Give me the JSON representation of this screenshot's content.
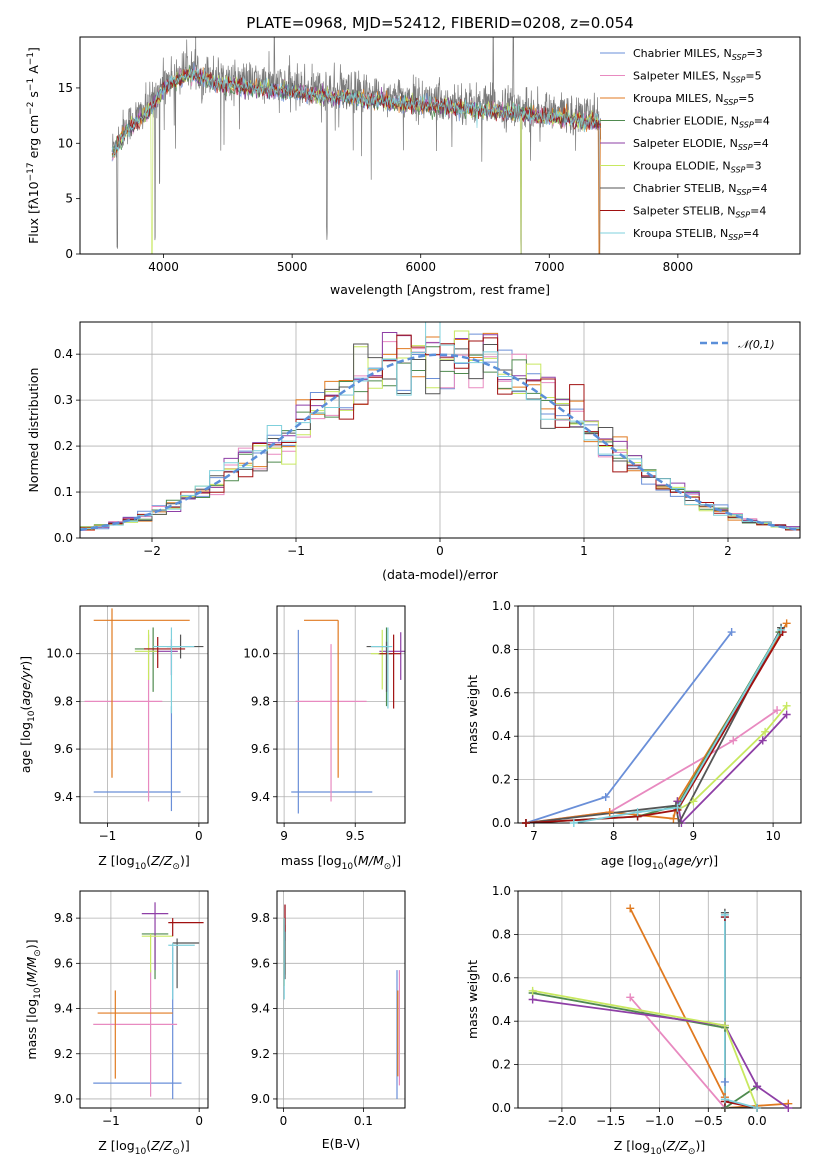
{
  "figure_title": "PLATE=0968, MJD=52412, FIBERID=0208, z=0.054",
  "model_colors": [
    "#6a8fd8",
    "#e88ac0",
    "#e07a20",
    "#4f8a4f",
    "#8e3fa6",
    "#c8e860",
    "#555555",
    "#a01010",
    "#7fd0dc"
  ],
  "legend_entries": [
    {
      "label": "Chabrier MILES, N",
      "sub": "SSP",
      "tail": "=3"
    },
    {
      "label": "Salpeter MILES, N",
      "sub": "SSP",
      "tail": "=5"
    },
    {
      "label": "Kroupa MILES, N",
      "sub": "SSP",
      "tail": "=5"
    },
    {
      "label": "Chabrier ELODIE, N",
      "sub": "SSP",
      "tail": "=4"
    },
    {
      "label": "Salpeter ELODIE, N",
      "sub": "SSP",
      "tail": "=4"
    },
    {
      "label": "Kroupa ELODIE, N",
      "sub": "SSP",
      "tail": "=3"
    },
    {
      "label": "Chabrier STELIB, N",
      "sub": "SSP",
      "tail": "=4"
    },
    {
      "label": "Salpeter STELIB, N",
      "sub": "SSP",
      "tail": "=4"
    },
    {
      "label": "Kroupa STELIB, N",
      "sub": "SSP",
      "tail": "=4"
    }
  ],
  "chart_data": [
    {
      "id": "spectrum",
      "type": "line",
      "title": "PLATE=0968, MJD=52412, FIBERID=0208, z=0.054",
      "xlabel": "wavelength [Angstrom, rest frame]",
      "ylabel_parts": [
        "Flux [f",
        "λ",
        "10",
        "−17",
        " erg cm",
        "−2",
        " s",
        "−1",
        " A",
        "−1",
        "]"
      ],
      "xlim": [
        3350,
        8950
      ],
      "ylim": [
        0,
        19.6
      ],
      "xticks": [
        4000,
        5000,
        6000,
        7000,
        8000
      ],
      "yticks": [
        0,
        5,
        10,
        15
      ],
      "data_range": [
        3600,
        7400
      ],
      "envelope": {
        "x": [
          3600,
          3650,
          3700,
          3800,
          3900,
          4000,
          4100,
          4200,
          4300,
          4400,
          4500,
          4700,
          4900,
          5100,
          5300,
          5500,
          5700,
          5900,
          6100,
          6300,
          6500,
          6700,
          6900,
          7100,
          7300,
          7400
        ],
        "y": [
          9.5,
          10.5,
          11.5,
          12.5,
          13.5,
          15.5,
          16.2,
          16.8,
          16.5,
          16.0,
          15.8,
          15.5,
          15.3,
          15.0,
          14.8,
          14.6,
          14.3,
          14.1,
          13.9,
          13.7,
          13.5,
          13.3,
          13.0,
          12.8,
          12.5,
          12.3
        ]
      },
      "absorption_features": [
        {
          "x": 3640,
          "depth": 9.5
        },
        {
          "x": 3934,
          "depth": 13
        },
        {
          "x": 3968,
          "depth": 7
        },
        {
          "x": 4300,
          "depth": 3
        },
        {
          "x": 5270,
          "depth": 13
        },
        {
          "x": 6780,
          "depth": 13
        },
        {
          "x": 7390,
          "depth": 12
        }
      ],
      "emission_features": [
        {
          "x": 4862,
          "height": 19.6
        },
        {
          "x": 6563,
          "height": 19.6
        },
        {
          "x": 6720,
          "height": 19.6
        }
      ],
      "legend_position": "top-right"
    },
    {
      "id": "residuals",
      "type": "histogram",
      "xlabel": "(data-model)/error",
      "ylabel": "Normed distribution",
      "xlim": [
        -2.5,
        2.5
      ],
      "ylim": [
        0,
        0.47
      ],
      "xticks": [
        -2,
        -1,
        0,
        1,
        2
      ],
      "yticks": [
        0.0,
        0.1,
        0.2,
        0.3,
        0.4
      ],
      "bin_range": [
        -2.5,
        2.5
      ],
      "n_bins": 50,
      "gaussian_label": "𝒩(0,1)",
      "gaussian": {
        "mu": 0,
        "sigma": 1,
        "color": "#5b8fd9"
      },
      "legend_position": "top-right"
    },
    {
      "id": "age-vs-Z",
      "type": "errorbar",
      "xlabel": "Z [log10(Z/Z⊙)]",
      "ylabel": "age [log10(age/yr)]",
      "xlim": [
        -1.3,
        0.1
      ],
      "ylim": [
        9.29,
        10.2
      ],
      "xticks": [
        -1,
        0
      ],
      "yticks": [
        9.4,
        9.6,
        9.8,
        10.0
      ],
      "points": [
        {
          "x": -0.3,
          "y": 9.42,
          "xerr": [
            0.85,
            0.1
          ],
          "yerr": [
            0.08,
            0.36
          ]
        },
        {
          "x": -0.55,
          "y": 9.8,
          "xerr": [
            0.7,
            0.15
          ],
          "yerr": [
            0.42,
            0.28
          ]
        },
        {
          "x": -0.95,
          "y": 10.14,
          "xerr": [
            0.2,
            0.85
          ],
          "yerr": [
            0.66,
            0.05
          ]
        },
        {
          "x": -0.5,
          "y": 10.02,
          "xerr": [
            0.2,
            0.05
          ],
          "yerr": [
            0.18,
            0.09
          ]
        },
        {
          "x": -0.3,
          "y": 10.01,
          "xerr": [
            0.25,
            0.07
          ],
          "yerr": [
            0.1,
            0.05
          ]
        },
        {
          "x": -0.55,
          "y": 10.01,
          "xerr": [
            0.15,
            0.1
          ],
          "yerr": [
            0.12,
            0.09
          ]
        },
        {
          "x": -0.2,
          "y": 10.03,
          "xerr": [
            0.15,
            0.25
          ],
          "yerr": [
            0.05,
            0.05
          ]
        },
        {
          "x": -0.45,
          "y": 10.02,
          "xerr": [
            0.15,
            0.3
          ],
          "yerr": [
            0.08,
            0.05
          ]
        },
        {
          "x": -0.3,
          "y": 10.03,
          "xerr": [
            0.2,
            0.25
          ],
          "yerr": [
            0.28,
            0.08
          ]
        }
      ]
    },
    {
      "id": "age-vs-mass",
      "type": "errorbar",
      "xlabel": "mass [log10(M/M⊙)]",
      "ylabel": "",
      "xlim": [
        8.95,
        9.85
      ],
      "ylim": [
        9.29,
        10.2
      ],
      "xticks": [
        9.0,
        9.5
      ],
      "yticks": [
        9.4,
        9.6,
        9.8,
        10.0
      ],
      "points": [
        {
          "x": 9.1,
          "y": 9.42,
          "xerr": [
            0.05,
            0.52
          ],
          "yerr": [
            0.09,
            0.68
          ]
        },
        {
          "x": 9.33,
          "y": 9.8,
          "xerr": [
            0.25,
            0.25
          ],
          "yerr": [
            0.42,
            0.24
          ]
        },
        {
          "x": 9.38,
          "y": 10.14,
          "xerr": [
            0.24,
            0.0
          ],
          "yerr": [
            0.66,
            0.0
          ]
        },
        {
          "x": 9.72,
          "y": 10.0,
          "xerr": [
            0.06,
            0.04
          ],
          "yerr": [
            0.22,
            0.11
          ]
        },
        {
          "x": 9.82,
          "y": 10.01,
          "xerr": [
            0.15,
            0.03
          ],
          "yerr": [
            0.12,
            0.08
          ]
        },
        {
          "x": 9.69,
          "y": 10.0,
          "xerr": [
            0.08,
            0.05
          ],
          "yerr": [
            0.15,
            0.1
          ]
        },
        {
          "x": 9.72,
          "y": 10.03,
          "xerr": [
            0.14,
            0.02
          ],
          "yerr": [
            0.19,
            0.02
          ]
        },
        {
          "x": 9.77,
          "y": 10.0,
          "xerr": [
            0.1,
            0.05
          ],
          "yerr": [
            0.23,
            0.08
          ]
        },
        {
          "x": 9.73,
          "y": 10.03,
          "xerr": [
            0.12,
            0.03
          ],
          "yerr": [
            0.26,
            0.08
          ]
        }
      ]
    },
    {
      "id": "mass-weight-vs-age",
      "type": "line",
      "xlabel": "age [log10(age/yr)]",
      "ylabel": "mass weight",
      "xlim": [
        6.8,
        10.35
      ],
      "ylim": [
        0,
        1.0
      ],
      "xticks": [
        7,
        8,
        9,
        10
      ],
      "yticks": [
        0.0,
        0.2,
        0.4,
        0.6,
        0.8,
        1.0
      ],
      "series": [
        {
          "x": [
            6.9,
            7.9,
            9.48
          ],
          "y": [
            0.0,
            0.12,
            0.88
          ]
        },
        {
          "x": [
            6.9,
            7.95,
            9.5,
            10.05
          ],
          "y": [
            0.0,
            0.05,
            0.38,
            0.52
          ]
        },
        {
          "x": [
            6.9,
            7.95,
            8.75,
            8.8,
            10.17
          ],
          "y": [
            0.0,
            0.05,
            0.02,
            0.1,
            0.92
          ]
        },
        {
          "x": [
            6.9,
            8.3,
            8.8,
            10.08
          ],
          "y": [
            0.0,
            0.03,
            0.08,
            0.88
          ]
        },
        {
          "x": [
            8.8,
            8.85,
            9.87,
            10.17
          ],
          "y": [
            0.1,
            0.0,
            0.38,
            0.5
          ]
        },
        {
          "x": [
            8.8,
            9.0,
            9.9,
            10.17
          ],
          "y": [
            0.06,
            0.1,
            0.42,
            0.54
          ]
        },
        {
          "x": [
            6.9,
            8.78,
            8.82,
            10.1
          ],
          "y": [
            0.0,
            0.08,
            0.0,
            0.9
          ]
        },
        {
          "x": [
            6.9,
            8.3,
            8.8,
            10.12
          ],
          "y": [
            0.0,
            0.03,
            0.06,
            0.88
          ]
        },
        {
          "x": [
            7.5,
            8.3,
            8.8,
            10.1
          ],
          "y": [
            0.0,
            0.05,
            0.07,
            0.89
          ]
        }
      ]
    },
    {
      "id": "mass-vs-Z",
      "type": "errorbar",
      "xlabel": "Z [log10(Z/Z⊙)]",
      "ylabel": "mass [log10(M/M⊙)]",
      "xlim": [
        -1.35,
        0.1
      ],
      "ylim": [
        8.96,
        9.92
      ],
      "xticks": [
        -1,
        0
      ],
      "yticks": [
        9.0,
        9.2,
        9.4,
        9.6,
        9.8
      ],
      "points": [
        {
          "x": -0.3,
          "y": 9.07,
          "xerr": [
            0.9,
            0.1
          ],
          "yerr": [
            0.07,
            0.6
          ]
        },
        {
          "x": -0.55,
          "y": 9.33,
          "xerr": [
            0.65,
            0.3
          ],
          "yerr": [
            0.32,
            0.24
          ]
        },
        {
          "x": -0.95,
          "y": 9.38,
          "xerr": [
            0.2,
            0.65
          ],
          "yerr": [
            0.29,
            0.1
          ]
        },
        {
          "x": -0.5,
          "y": 9.73,
          "xerr": [
            0.15,
            0.15
          ],
          "yerr": [
            0.2,
            0.0
          ]
        },
        {
          "x": -0.5,
          "y": 9.82,
          "xerr": [
            0.15,
            0.15
          ],
          "yerr": [
            0.25,
            0.05
          ]
        },
        {
          "x": -0.55,
          "y": 9.72,
          "xerr": [
            0.1,
            0.25
          ],
          "yerr": [
            0.16,
            0.01
          ]
        },
        {
          "x": -0.25,
          "y": 9.69,
          "xerr": [
            0.05,
            0.25
          ],
          "yerr": [
            0.2,
            0.02
          ]
        },
        {
          "x": -0.3,
          "y": 9.78,
          "xerr": [
            0.05,
            0.35
          ],
          "yerr": [
            0.06,
            0.02
          ]
        },
        {
          "x": -0.3,
          "y": 9.68,
          "xerr": [
            0.05,
            0.25
          ],
          "yerr": [
            0.24,
            0.01
          ]
        }
      ]
    },
    {
      "id": "mass-vs-EBV",
      "type": "errorbar",
      "xlabel": "E(B-V)",
      "ylabel": "",
      "xlim": [
        -0.008,
        0.152
      ],
      "ylim": [
        8.96,
        9.92
      ],
      "xticks": [
        0.0,
        0.1
      ],
      "yticks": [
        9.0,
        9.2,
        9.4,
        9.6,
        9.8
      ],
      "points": [
        {
          "x": 0.142,
          "y": 9.07,
          "xerr": [
            0,
            0
          ],
          "yerr": [
            0.07,
            0.5
          ]
        },
        {
          "x": 0.145,
          "y": 9.33,
          "xerr": [
            0,
            0
          ],
          "yerr": [
            0.27,
            0.24
          ]
        },
        {
          "x": 0.143,
          "y": 9.38,
          "xerr": [
            0,
            0
          ],
          "yerr": [
            0.28,
            0.1
          ]
        },
        {
          "x": 0.002,
          "y": 9.6,
          "xerr": [
            0,
            0
          ],
          "yerr": [
            0.05,
            0.2
          ]
        },
        {
          "x": 0.002,
          "y": 9.78,
          "xerr": [
            0,
            0
          ],
          "yerr": [
            0.08,
            0.08
          ]
        },
        {
          "x": 0.001,
          "y": 9.6,
          "xerr": [
            0,
            0
          ],
          "yerr": [
            0.1,
            0.2
          ]
        },
        {
          "x": 0.002,
          "y": 9.65,
          "xerr": [
            0,
            0
          ],
          "yerr": [
            0.12,
            0.12
          ]
        },
        {
          "x": 0.002,
          "y": 9.8,
          "xerr": [
            0,
            0
          ],
          "yerr": [
            0.06,
            0.06
          ]
        },
        {
          "x": 0.001,
          "y": 9.56,
          "xerr": [
            0,
            0
          ],
          "yerr": [
            0.12,
            0.24
          ]
        }
      ]
    },
    {
      "id": "mass-weight-vs-Z",
      "type": "line",
      "xlabel": "Z [log10(Z/Z⊙)]",
      "ylabel": "mass weight",
      "xlim": [
        -2.45,
        0.45
      ],
      "ylim": [
        0,
        1.0
      ],
      "xticks": [
        -2.0,
        -1.5,
        -1.0,
        -0.5,
        0.0
      ],
      "yticks": [
        0.0,
        0.2,
        0.4,
        0.6,
        0.8,
        1.0
      ],
      "series": [
        {
          "x": [
            -0.33,
            -0.33,
            -0.33
          ],
          "y": [
            0.0,
            0.12,
            0.88
          ]
        },
        {
          "x": [
            -1.3,
            -0.33,
            -0.33
          ],
          "y": [
            0.51,
            0.0,
            0.05
          ]
        },
        {
          "x": [
            -1.3,
            -0.33,
            -0.33,
            0.32
          ],
          "y": [
            0.92,
            0.05,
            0.0,
            0.02
          ]
        },
        {
          "x": [
            -2.3,
            -0.33,
            -0.33,
            0.0
          ],
          "y": [
            0.53,
            0.37,
            0.0,
            0.1
          ]
        },
        {
          "x": [
            -2.3,
            -0.33,
            0.0,
            0.32
          ],
          "y": [
            0.5,
            0.38,
            0.1,
            0.0
          ]
        },
        {
          "x": [
            -2.3,
            -0.33,
            0.0
          ],
          "y": [
            0.54,
            0.38,
            0.0
          ]
        },
        {
          "x": [
            -0.33,
            -0.33,
            0.0
          ],
          "y": [
            0.9,
            0.0,
            0.0
          ]
        },
        {
          "x": [
            -0.33,
            -0.33,
            0.0
          ],
          "y": [
            0.88,
            0.03,
            0.0
          ]
        },
        {
          "x": [
            -0.33,
            -0.33,
            0.0
          ],
          "y": [
            0.89,
            0.04,
            0.0
          ]
        }
      ]
    }
  ]
}
